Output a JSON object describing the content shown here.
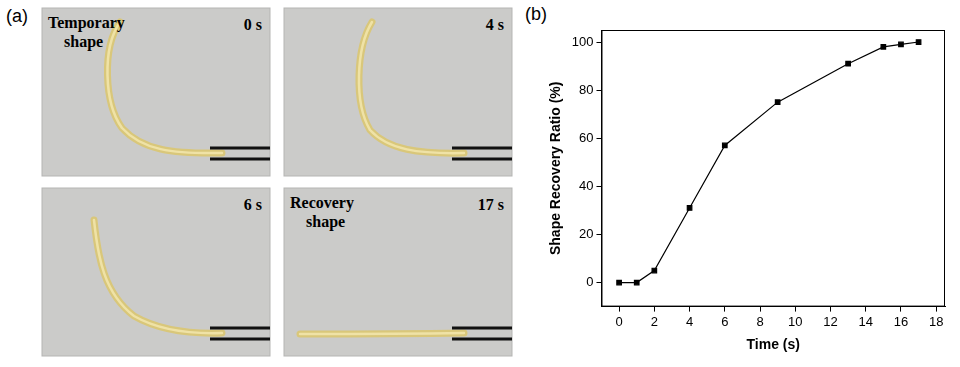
{
  "panels": {
    "a": "(a)",
    "b": "(b)"
  },
  "photo_panel": {
    "photos": [
      {
        "caption": "Temporary shape",
        "time": "0 s"
      },
      {
        "caption": null,
        "time": "4 s"
      },
      {
        "caption": null,
        "time": "6 s"
      },
      {
        "caption": "Recovery shape",
        "time": "17 s"
      }
    ]
  },
  "chart_data": {
    "type": "line",
    "x_label": "Time (s)",
    "y_label": "Shape Recovery Ratio (%)",
    "x": [
      0,
      1,
      2,
      4,
      6,
      9,
      13,
      15,
      16,
      17
    ],
    "values": [
      0,
      0,
      5,
      31,
      57,
      75,
      91,
      98,
      99,
      100
    ],
    "color": "#000000",
    "marker": "square",
    "line_style": "solid",
    "xlim": [
      -1,
      18.5
    ],
    "xticks": [
      0,
      2,
      4,
      6,
      8,
      10,
      12,
      14,
      16,
      18
    ],
    "ylim": [
      -10,
      105
    ],
    "yticks": [
      0,
      20,
      40,
      60,
      80,
      100
    ],
    "grid": false
  }
}
